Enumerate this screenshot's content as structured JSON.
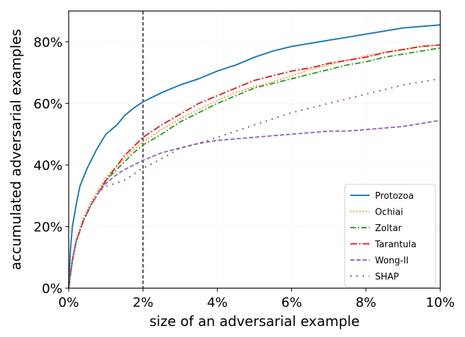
{
  "chart_data": {
    "type": "line",
    "xlabel": "size of an adversarial example",
    "ylabel": "accumulated adversarial examples",
    "xlim": [
      0,
      10
    ],
    "ylim": [
      0,
      90
    ],
    "xticks": [
      0,
      2,
      4,
      6,
      8,
      10
    ],
    "yticks": [
      0,
      20,
      40,
      60,
      80
    ],
    "xtick_labels": [
      "0%",
      "2%",
      "4%",
      "6%",
      "8%",
      "10%"
    ],
    "ytick_labels": [
      "0%",
      "20%",
      "40%",
      "60%",
      "80%"
    ],
    "grid": true,
    "legend_position": "lower-right",
    "vertical_line": {
      "x": 2,
      "style": "dashed",
      "color": "#000000"
    },
    "series": [
      {
        "name": "Protozoa",
        "color": "#1f77b4",
        "dash": "solid",
        "x": [
          0,
          0.05,
          0.1,
          0.2,
          0.3,
          0.5,
          0.75,
          1.0,
          1.3,
          1.5,
          1.75,
          2.0,
          2.5,
          3.0,
          3.5,
          4.0,
          4.5,
          5.0,
          5.5,
          6.0,
          6.5,
          7.0,
          7.5,
          8.0,
          8.5,
          9.0,
          9.5,
          10.0
        ],
        "y": [
          0,
          13,
          20,
          27,
          33,
          39,
          45,
          50,
          53,
          56,
          58.5,
          60.5,
          63.5,
          66,
          68,
          70.5,
          72.5,
          75,
          77,
          78.5,
          79.5,
          80.5,
          81.5,
          82.5,
          83.5,
          84.5,
          85,
          85.5
        ]
      },
      {
        "name": "Ochiai",
        "color": "#ff7f0e",
        "dash": "dotted",
        "x": [
          0,
          0.1,
          0.2,
          0.4,
          0.6,
          0.8,
          1.0,
          1.25,
          1.5,
          1.75,
          2.0,
          2.5,
          3.0,
          3.5,
          4.0,
          4.5,
          5.0,
          5.5,
          6.0,
          6.5,
          7.0,
          7.5,
          8.0,
          8.5,
          9.0,
          9.5,
          10.0
        ],
        "y": [
          0,
          10,
          16,
          23,
          28,
          32,
          36,
          39,
          42,
          45,
          47.5,
          51.5,
          55,
          58,
          61,
          63.5,
          65.5,
          67,
          69,
          71,
          72.5,
          74,
          75.5,
          76.5,
          77.5,
          78.5,
          79
        ]
      },
      {
        "name": "Zoltar",
        "color": "#2ca02c",
        "dash": "dashdot",
        "x": [
          0,
          0.1,
          0.2,
          0.4,
          0.6,
          0.8,
          1.0,
          1.25,
          1.5,
          1.75,
          2.0,
          2.5,
          3.0,
          3.5,
          4.0,
          4.5,
          5.0,
          5.5,
          6.0,
          6.5,
          7.0,
          7.5,
          8.0,
          8.5,
          9.0,
          9.5,
          10.0
        ],
        "y": [
          0,
          9,
          15,
          22,
          27,
          31,
          35,
          38,
          41,
          44,
          46.5,
          50,
          54,
          57,
          60,
          62.5,
          65,
          66.5,
          68,
          69.5,
          71,
          72.5,
          73.5,
          75,
          76,
          77,
          78
        ]
      },
      {
        "name": "Tarantula",
        "color": "#d62728",
        "dash": "dashdotlong",
        "x": [
          0,
          0.1,
          0.2,
          0.4,
          0.6,
          0.8,
          1.0,
          1.25,
          1.5,
          1.75,
          2.0,
          2.5,
          3.0,
          3.5,
          4.0,
          4.5,
          5.0,
          5.5,
          6.0,
          6.5,
          7.0,
          7.5,
          8.0,
          8.5,
          9.0,
          9.5,
          10.0
        ],
        "y": [
          0,
          9,
          15,
          22,
          27,
          31,
          35,
          39,
          43,
          46,
          49,
          53,
          56.5,
          60,
          62.5,
          65,
          67.5,
          69,
          70.5,
          71.5,
          73,
          74,
          75,
          76.5,
          77.5,
          78.5,
          79
        ]
      },
      {
        "name": "Wong-II",
        "color": "#9467bd",
        "dash": "dashed",
        "x": [
          0,
          0.1,
          0.2,
          0.4,
          0.6,
          0.8,
          1.0,
          1.25,
          1.5,
          1.75,
          2.0,
          2.5,
          3.0,
          3.5,
          4.0,
          4.5,
          5.0,
          5.5,
          6.0,
          6.5,
          7.0,
          7.5,
          8.0,
          8.5,
          9.0,
          9.5,
          10.0
        ],
        "y": [
          0,
          9,
          15,
          22,
          27,
          31,
          34,
          36.5,
          38.5,
          40,
          41.5,
          44,
          45.5,
          47,
          48,
          48.5,
          49,
          49.5,
          50,
          50.5,
          51,
          51,
          51.5,
          52,
          52.5,
          53.5,
          54.5
        ]
      },
      {
        "name": "SHAP",
        "color": "#8c564b",
        "dash": "loosedot",
        "x": [
          0,
          0.1,
          0.2,
          0.4,
          0.6,
          0.8,
          1.0,
          1.25,
          1.5,
          1.75,
          2.0,
          2.5,
          3.0,
          3.5,
          4.0,
          4.5,
          5.0,
          5.5,
          6.0,
          6.5,
          7.0,
          7.5,
          8.0,
          8.5,
          9.0,
          9.5,
          10.0
        ],
        "y": [
          0,
          9,
          15,
          22,
          27,
          31,
          33,
          34,
          35,
          37,
          39,
          42,
          45.5,
          47,
          49,
          51,
          53,
          55,
          57,
          58.5,
          60,
          61.5,
          63,
          64.5,
          66,
          67,
          68
        ]
      }
    ]
  }
}
